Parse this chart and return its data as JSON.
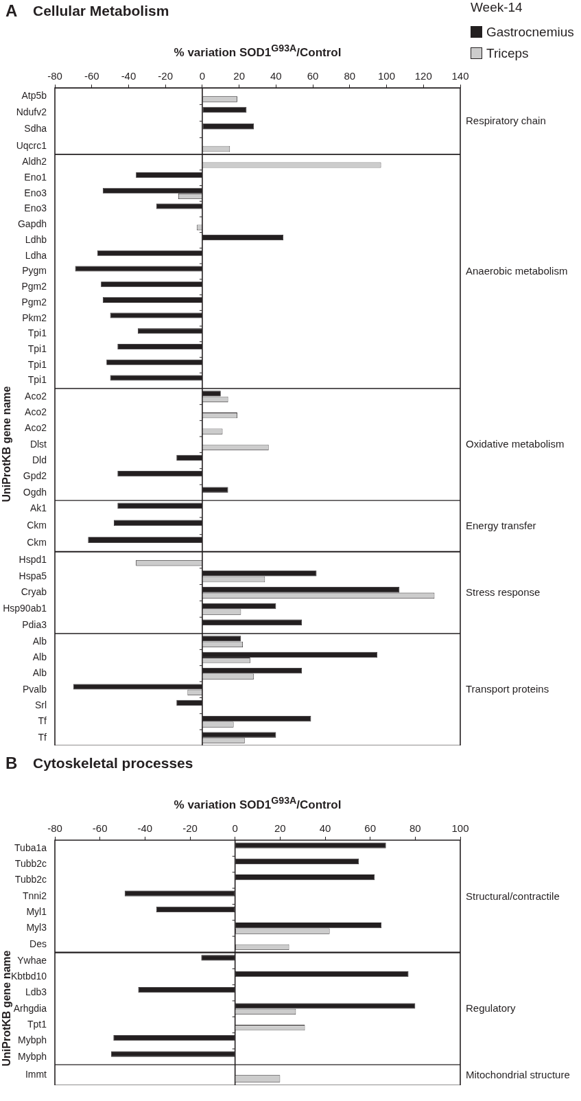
{
  "chart_data": [
    {
      "type": "bar",
      "orientation": "horizontal",
      "title": "Cellular Metabolism",
      "xlabel": "% variation SOD1$^{G93A}$/Control",
      "legend": "top right",
      "legend_title": "Week-14",
      "annotations": [
        "Respiratory chain",
        "A"
      ],
      "xlim": [
        -80,
        140
      ],
      "xticks": [
        -80,
        -60,
        -40,
        -20,
        0,
        20,
        40,
        60,
        80,
        100,
        120,
        140
      ],
      "ref_lines": [
        {
          "axis": "x",
          "value": 0
        }
      ],
      "categories": [
        "Atp5b",
        "Ndufv2",
        "Sdha",
        "Uqcrc1"
      ],
      "series": [
        {
          "name": "Gastrocnemius",
          "color": "#231f20",
          "values": [
            null,
            24,
            28,
            null
          ]
        },
        {
          "name": "Triceps",
          "color": "#cccccc",
          "values": [
            19,
            null,
            null,
            15
          ]
        }
      ]
    },
    {
      "type": "bar",
      "orientation": "horizontal",
      "annotations": [
        "Anaerobic metabolism"
      ],
      "xlim": [
        -80,
        140
      ],
      "tick_labels": "y",
      "ref_lines": [
        {
          "axis": "x",
          "value": 0
        }
      ],
      "categories": [
        "Aldh2",
        "Eno1",
        "Eno3",
        "Eno3",
        "Gapdh",
        "Ldhb",
        "Ldha",
        "Pygm",
        "Pgm2",
        "Pgm2",
        "Pkm2",
        "Tpi1",
        "Tpi1",
        "Tpi1",
        "Tpi1"
      ],
      "series": [
        {
          "color": "#231f20",
          "values": [
            null,
            -36,
            -54,
            -25,
            null,
            44,
            -57,
            -69,
            -55,
            -54,
            -50,
            -35,
            -46,
            -52,
            -50
          ]
        },
        {
          "color": "#cccccc",
          "values": [
            97,
            null,
            -13,
            null,
            -3,
            null,
            null,
            null,
            null,
            null,
            null,
            null,
            null,
            null,
            null
          ]
        }
      ]
    },
    {
      "type": "bar",
      "orientation": "horizontal",
      "ylabel": "UniProtKB gene name",
      "annotations": [
        "Oxidative metabolism"
      ],
      "xlim": [
        -80,
        140
      ],
      "tick_labels": "y",
      "ref_lines": [
        {
          "axis": "x",
          "value": 0
        }
      ],
      "categories": [
        "Aco2",
        "Aco2",
        "Aco2",
        "Dlst",
        "Dld",
        "Gpd2",
        "Ogdh"
      ],
      "series": [
        {
          "color": "#231f20",
          "values": [
            10,
            null,
            null,
            null,
            -14,
            -46,
            14
          ]
        },
        {
          "color": "#cccccc",
          "values": [
            14,
            19,
            11,
            36,
            null,
            null,
            null
          ]
        }
      ]
    },
    {
      "type": "bar",
      "orientation": "horizontal",
      "annotations": [
        "Energy transfer"
      ],
      "xlim": [
        -80,
        140
      ],
      "tick_labels": "y",
      "ref_lines": [
        {
          "axis": "x",
          "value": 0
        }
      ],
      "categories": [
        "Ak1",
        "Ckm",
        "Ckm"
      ],
      "series": [
        {
          "color": "#231f20",
          "values": [
            -46,
            -48,
            -62
          ]
        },
        {
          "color": "#cccccc",
          "values": [
            null,
            null,
            null
          ]
        }
      ]
    },
    {
      "type": "bar",
      "orientation": "horizontal",
      "annotations": [
        "Stress response"
      ],
      "xlim": [
        -80,
        140
      ],
      "tick_labels": "y",
      "ref_lines": [
        {
          "axis": "x",
          "value": 0
        }
      ],
      "categories": [
        "Hspd1",
        "Hspa5",
        "Cryab",
        "Hsp90ab1",
        "Pdia3"
      ],
      "series": [
        {
          "color": "#231f20",
          "values": [
            null,
            62,
            107,
            40,
            54
          ]
        },
        {
          "color": "#cccccc",
          "values": [
            -36,
            34,
            126,
            21,
            null
          ]
        }
      ]
    },
    {
      "type": "bar",
      "orientation": "horizontal",
      "annotations": [
        "Transport proteins"
      ],
      "xlim": [
        -80,
        140
      ],
      "tick_labels": "y",
      "ref_lines": [
        {
          "axis": "x",
          "value": 0
        }
      ],
      "categories": [
        "Alb",
        "Alb",
        "Alb",
        "Pvalb",
        "Srl",
        "Tf",
        "Tf"
      ],
      "series": [
        {
          "color": "#231f20",
          "values": [
            21,
            95,
            54,
            -70,
            -14,
            59,
            40
          ]
        },
        {
          "color": "#cccccc",
          "values": [
            22,
            26,
            28,
            -8,
            null,
            17,
            23
          ]
        }
      ]
    },
    {
      "type": "bar",
      "orientation": "horizontal",
      "title": "Cytoskeletal processes",
      "xlabel": "% variation SOD1$^{G93A}$/Control",
      "annotations": [
        "Structural/contractile",
        "B"
      ],
      "xlim": [
        -80,
        100
      ],
      "xticks": [
        -80,
        -60,
        -40,
        -20,
        0,
        20,
        40,
        60,
        80,
        100
      ],
      "ref_lines": [
        {
          "axis": "x",
          "value": 0
        }
      ],
      "categories": [
        "Tuba1a",
        "Tubb2c",
        "Tubb2c",
        "Tnni2",
        "Myl1",
        "Myl3",
        "Des"
      ],
      "series": [
        {
          "color": "#231f20",
          "values": [
            67,
            55,
            62,
            -49,
            -35,
            65,
            null
          ]
        },
        {
          "color": "#cccccc",
          "values": [
            null,
            null,
            null,
            null,
            null,
            42,
            24
          ]
        }
      ]
    },
    {
      "type": "bar",
      "orientation": "horizontal",
      "ylabel": "UniProtKB gene name",
      "annotations": [
        "Regulatory"
      ],
      "xlim": [
        -80,
        100
      ],
      "tick_labels": "y",
      "ref_lines": [
        {
          "axis": "x",
          "value": 0
        }
      ],
      "categories": [
        "Ywhae",
        "Kbtbd10",
        "Ldb3",
        "Arhgdia",
        "Tpt1",
        "Mybph",
        "Mybph"
      ],
      "series": [
        {
          "color": "#231f20",
          "values": [
            -15,
            77,
            -43,
            80,
            null,
            -54,
            -55
          ]
        },
        {
          "color": "#cccccc",
          "values": [
            null,
            null,
            null,
            27,
            31,
            null,
            null
          ]
        }
      ]
    },
    {
      "type": "bar",
      "orientation": "horizontal",
      "annotations": [
        "Mitochondrial structure"
      ],
      "xlim": [
        -80,
        100
      ],
      "tick_labels": "y",
      "ref_lines": [
        {
          "axis": "x",
          "value": 0
        }
      ],
      "categories": [
        "Immt"
      ],
      "series": [
        {
          "color": "#231f20",
          "values": [
            null
          ]
        },
        {
          "color": "#cccccc",
          "values": [
            20
          ]
        }
      ]
    }
  ]
}
